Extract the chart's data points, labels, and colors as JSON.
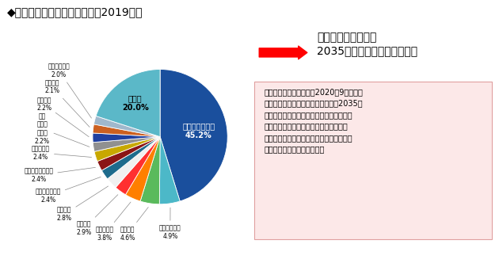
{
  "title": "◆電気自動車の州別販売割合（2019年）",
  "labels": [
    "カリフォルニア",
    "ニューヨーク",
    "フロリダ",
    "ワシントン",
    "テキサス",
    "イリノイ",
    "ペンシルベニア",
    "ニュージャージー",
    "バージニア",
    "マサチューセッツ",
    "オハイオ",
    "コロラド",
    "メリーランド",
    "その他"
  ],
  "values": [
    45.2,
    4.9,
    4.6,
    3.8,
    2.9,
    2.8,
    2.4,
    2.4,
    2.4,
    2.2,
    2.2,
    2.1,
    2.0,
    20.0
  ],
  "colors": [
    "#1a4f9d",
    "#4cb8c8",
    "#5aba5c",
    "#ff7f00",
    "#ff3030",
    "#f0f0f0",
    "#1e6b8c",
    "#8b1515",
    "#c8a800",
    "#909090",
    "#2040a0",
    "#cc6020",
    "#a0b8cc",
    "#5bb8c8"
  ],
  "box_title_line1": "カリフォルニア州：",
  "box_title_line2": "2035年にガソリン車販売禁止",
  "body_normal1": "カリフォルニア州では、2020年9月、同州",
  "body_normal2": "内における",
  "body_bold1": "ガソリン車の新車販売を2035年",
  "body_bold2": "までに禁止",
  "body_normal3": "するとし、同年までに州内で販",
  "body_normal4": "売する",
  "body_bold3": "全ての新車",
  "body_normal5": "（乗用車およびトラッ",
  "body_normal6": "ク）",
  "body_bold4": "をゼロ・エミッション車両",
  "body_normal7": "とすること",
  "body_normal8": "を義務付ける知事令を発出。"
}
